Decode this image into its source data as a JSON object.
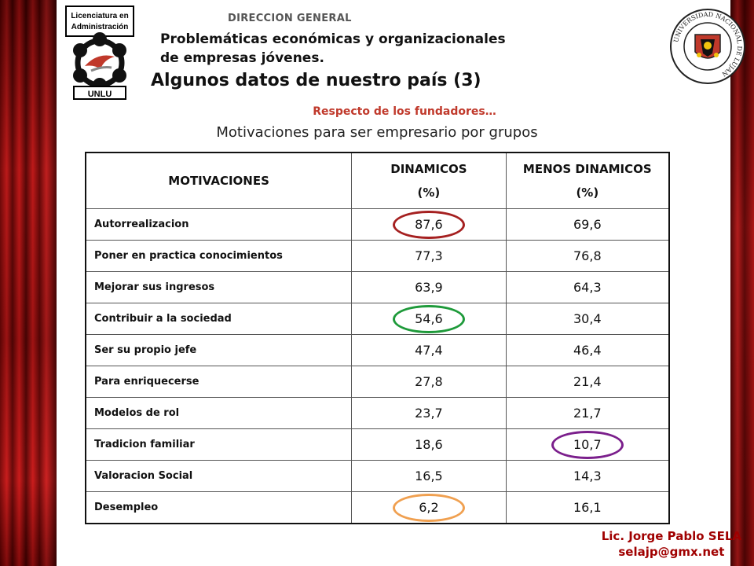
{
  "header": {
    "logo_text": "Licenciatura en Administración",
    "logo_acronym": "UNLU",
    "seal_text": "UNIVERSIDAD NACIONAL DE LUJAN",
    "department": "DIRECCION GENERAL",
    "subtitle_line1": "Problemáticas económicas y organizacionales",
    "subtitle_line2": "de empresas jóvenes.",
    "title": "Algunos datos de nuestro país (3)"
  },
  "section_title": "Respecto de los fundadores…",
  "table_caption": "Motivaciones para ser empresario por grupos",
  "table": {
    "headers": [
      "MOTIVACIONES",
      "DINAMICOS (%)",
      "MENOS DINAMICOS (%)"
    ],
    "rows": [
      {
        "label": "Autorrealizacion",
        "dinamicos": "87,6",
        "menos": "69,6"
      },
      {
        "label": "Poner en practica conocimientos",
        "dinamicos": "77,3",
        "menos": "76,8"
      },
      {
        "label": "Mejorar sus ingresos",
        "dinamicos": "63,9",
        "menos": "64,3"
      },
      {
        "label": "Contribuir a la sociedad",
        "dinamicos": "54,6",
        "menos": "30,4"
      },
      {
        "label": "Ser su propio jefe",
        "dinamicos": "47,4",
        "menos": "46,4"
      },
      {
        "label": "Para enriquecerse",
        "dinamicos": "27,8",
        "menos": "21,4"
      },
      {
        "label": "Modelos de rol",
        "dinamicos": "23,7",
        "menos": "21,7"
      },
      {
        "label": "Tradicion familiar",
        "dinamicos": "18,6",
        "menos": "10,7"
      },
      {
        "label": "Valoracion Social",
        "dinamicos": "16,5",
        "menos": "14,3"
      },
      {
        "label": "Desempleo",
        "dinamicos": "6,2",
        "menos": "16,1"
      }
    ]
  },
  "highlights": {
    "red": "#a52020",
    "green": "#1e9a3a",
    "purple": "#7b1f8c",
    "orange": "#f0a050"
  },
  "footer": {
    "author": "Lic. Jorge Pablo SELA",
    "email": "selajp@gmx.net"
  }
}
